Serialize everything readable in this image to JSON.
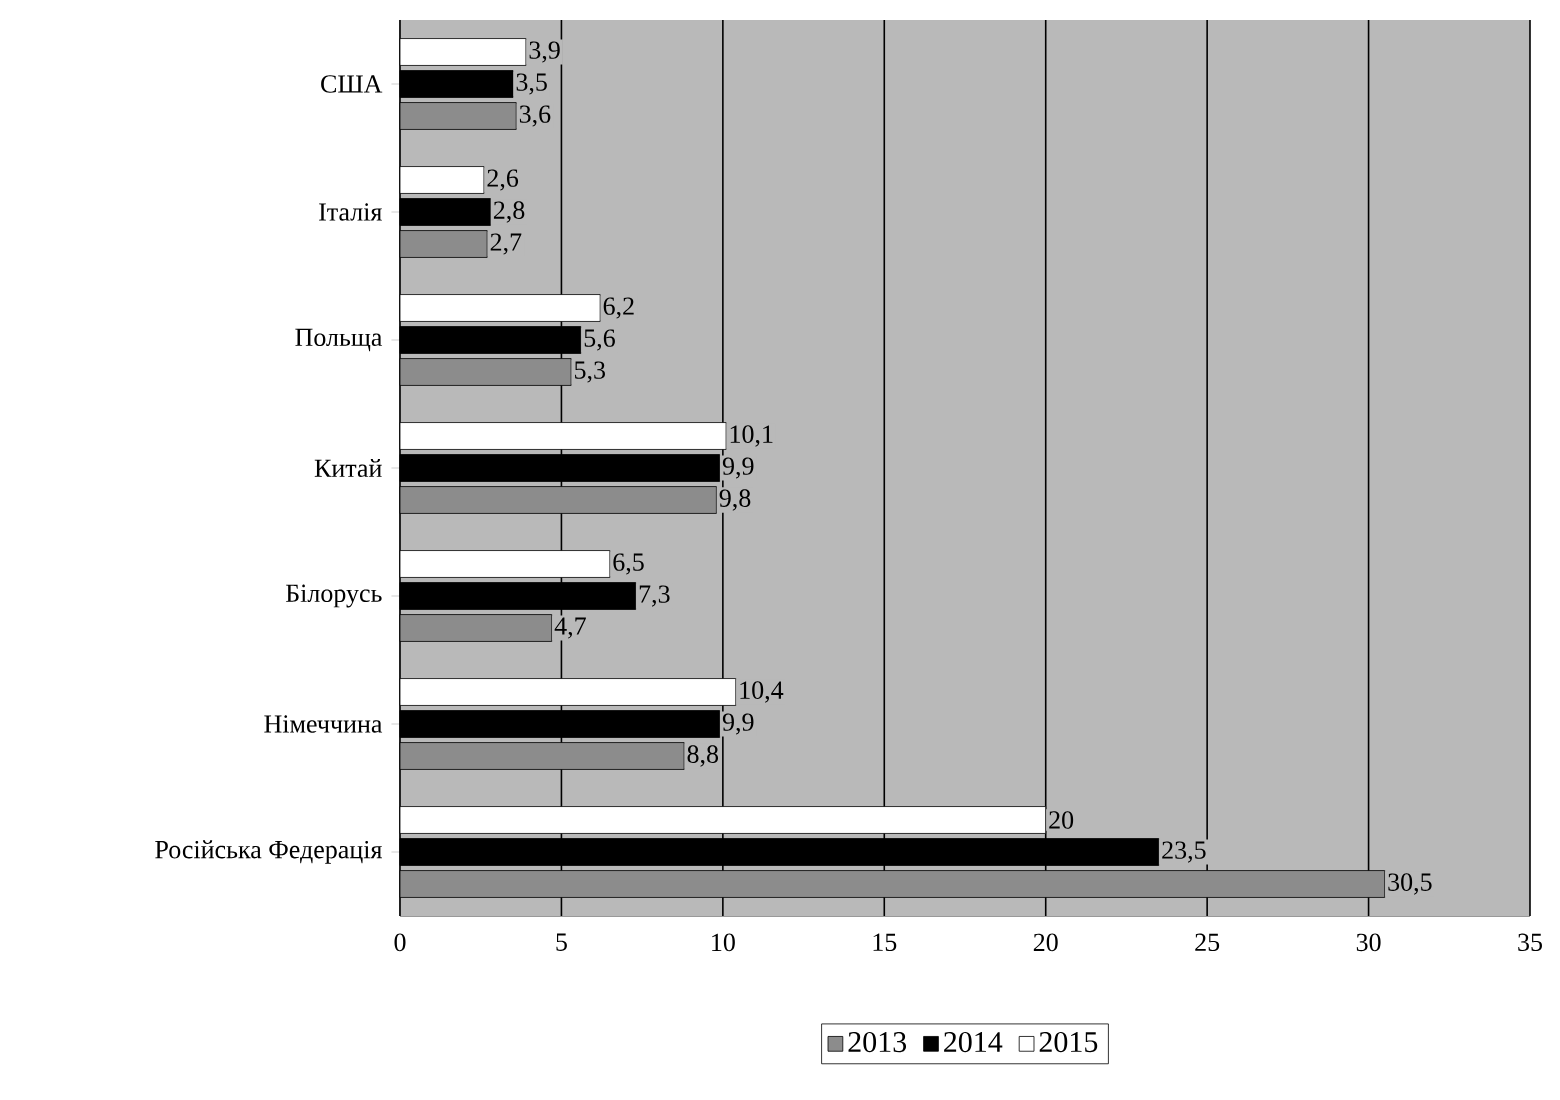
{
  "chart_data": {
    "type": "bar",
    "orientation": "horizontal",
    "categories": [
      "США",
      "Італія",
      "Польща",
      "Китай",
      "Білорусь",
      "Німеччина",
      "Російська Федерація"
    ],
    "series": [
      {
        "name": "2013",
        "color": "#8c8c8c",
        "values": [
          3.6,
          2.7,
          5.3,
          9.8,
          4.7,
          8.8,
          30.5
        ],
        "value_labels": [
          "3,6",
          "2,7",
          "5,3",
          "9,8",
          "4,7",
          "8,8",
          "30,5"
        ]
      },
      {
        "name": "2014",
        "color": "#000000",
        "values": [
          3.5,
          2.8,
          5.6,
          9.9,
          7.3,
          9.9,
          23.5
        ],
        "value_labels": [
          "3,5",
          "2,8",
          "5,6",
          "9,9",
          "7,3",
          "9,9",
          "23,5"
        ]
      },
      {
        "name": "2015",
        "color": "#ffffff",
        "values": [
          3.9,
          2.6,
          6.2,
          10.1,
          6.5,
          10.4,
          20
        ],
        "value_labels": [
          "3,9",
          "2,6",
          "6,2",
          "10,1",
          "6,5",
          "10,4",
          "20"
        ]
      }
    ],
    "xlim": [
      0,
      35
    ],
    "xticks": [
      0,
      5,
      10,
      15,
      20,
      25,
      30,
      35
    ],
    "grid": "x",
    "legend": "bottom"
  }
}
